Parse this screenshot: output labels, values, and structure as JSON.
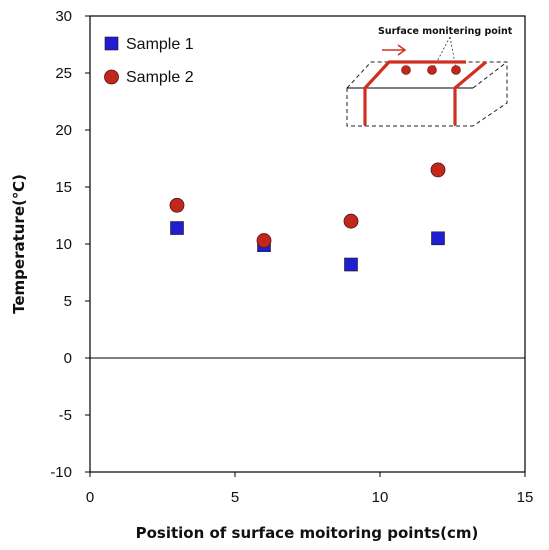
{
  "chart_data": {
    "type": "scatter",
    "xlabel": "Position of surface moitoring points(cm)",
    "ylabel": "Temperature(℃)",
    "xlim": [
      0,
      15
    ],
    "ylim": [
      -10,
      30
    ],
    "x_ticks": [
      "0",
      "5",
      "10",
      "15"
    ],
    "y_ticks": [
      "-10",
      "-5",
      "0",
      "5",
      "10",
      "15",
      "20",
      "25",
      "30"
    ],
    "zero_line": true,
    "grid": false,
    "legend_position": "top-left",
    "series": [
      {
        "name": "Sample 1",
        "marker": "square",
        "color": "#1f1fd1",
        "points": [
          {
            "x": 3,
            "y": 11.4
          },
          {
            "x": 6,
            "y": 9.9
          },
          {
            "x": 9,
            "y": 8.2
          },
          {
            "x": 12,
            "y": 10.5
          }
        ]
      },
      {
        "name": "Sample 2",
        "marker": "circle",
        "color": "#c0281e",
        "points": [
          {
            "x": 3,
            "y": 13.4
          },
          {
            "x": 6,
            "y": 10.3
          },
          {
            "x": 9,
            "y": 12.0
          },
          {
            "x": 12,
            "y": 16.5
          }
        ]
      }
    ],
    "annotation": "Surface monitering point"
  }
}
